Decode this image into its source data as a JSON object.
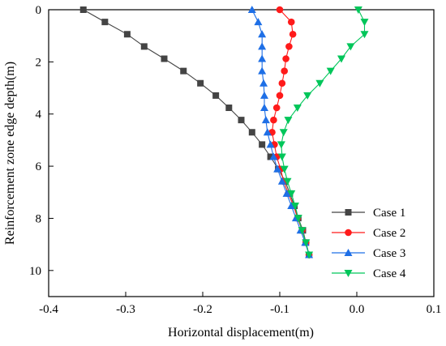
{
  "chart_data": {
    "type": "line",
    "title": "",
    "xlabel": "Horizontal displacement(m)",
    "ylabel": "Reinforcement zone edge depth(m)",
    "xlim": [
      -0.4,
      0.1
    ],
    "ylim": [
      0,
      11
    ],
    "y_inverted": true,
    "x_ticks": [
      "-0.4",
      "-0.3",
      "-0.2",
      "-0.1",
      "0.0",
      "0.1"
    ],
    "y_ticks": [
      "0",
      "2",
      "4",
      "6",
      "8",
      "10"
    ],
    "x_tick_values": [
      -0.4,
      -0.3,
      -0.2,
      -0.1,
      0.0,
      0.1
    ],
    "y_tick_values": [
      0,
      2,
      4,
      6,
      8,
      10
    ],
    "grid": false,
    "legend_position": "bottom-right",
    "series": [
      {
        "name": "Case 1",
        "color": "#444444",
        "marker": "square",
        "points": [
          [
            -0.355,
            0.0
          ],
          [
            -0.327,
            0.47
          ],
          [
            -0.298,
            0.94
          ],
          [
            -0.276,
            1.41
          ],
          [
            -0.25,
            1.88
          ],
          [
            -0.225,
            2.35
          ],
          [
            -0.203,
            2.82
          ],
          [
            -0.183,
            3.29
          ],
          [
            -0.166,
            3.76
          ],
          [
            -0.15,
            4.23
          ],
          [
            -0.136,
            4.7
          ],
          [
            -0.123,
            5.17
          ],
          [
            -0.112,
            5.64
          ],
          [
            -0.102,
            6.11
          ],
          [
            -0.093,
            6.58
          ],
          [
            -0.087,
            7.05
          ],
          [
            -0.081,
            7.52
          ],
          [
            -0.076,
            7.99
          ],
          [
            -0.07,
            8.46
          ],
          [
            -0.066,
            8.93
          ],
          [
            -0.062,
            9.4
          ]
        ]
      },
      {
        "name": "Case 2",
        "color": "#ff1a1a",
        "marker": "circle",
        "points": [
          [
            -0.1,
            0.0
          ],
          [
            -0.085,
            0.47
          ],
          [
            -0.083,
            0.94
          ],
          [
            -0.088,
            1.41
          ],
          [
            -0.092,
            1.88
          ],
          [
            -0.094,
            2.35
          ],
          [
            -0.097,
            2.82
          ],
          [
            -0.1,
            3.29
          ],
          [
            -0.104,
            3.76
          ],
          [
            -0.108,
            4.23
          ],
          [
            -0.11,
            4.7
          ],
          [
            -0.107,
            5.17
          ],
          [
            -0.104,
            5.64
          ],
          [
            -0.099,
            6.11
          ],
          [
            -0.095,
            6.58
          ],
          [
            -0.089,
            7.05
          ],
          [
            -0.082,
            7.52
          ],
          [
            -0.077,
            7.99
          ],
          [
            -0.071,
            8.46
          ],
          [
            -0.066,
            8.93
          ],
          [
            -0.062,
            9.4
          ]
        ]
      },
      {
        "name": "Case 3",
        "color": "#1e6fe6",
        "marker": "triangle-up",
        "points": [
          [
            -0.136,
            0.0
          ],
          [
            -0.128,
            0.47
          ],
          [
            -0.123,
            0.94
          ],
          [
            -0.123,
            1.41
          ],
          [
            -0.123,
            1.88
          ],
          [
            -0.123,
            2.35
          ],
          [
            -0.121,
            2.82
          ],
          [
            -0.12,
            3.29
          ],
          [
            -0.12,
            3.76
          ],
          [
            -0.118,
            4.23
          ],
          [
            -0.116,
            4.7
          ],
          [
            -0.112,
            5.17
          ],
          [
            -0.108,
            5.64
          ],
          [
            -0.103,
            6.11
          ],
          [
            -0.097,
            6.58
          ],
          [
            -0.091,
            7.05
          ],
          [
            -0.085,
            7.52
          ],
          [
            -0.079,
            7.99
          ],
          [
            -0.073,
            8.46
          ],
          [
            -0.067,
            8.93
          ],
          [
            -0.062,
            9.4
          ]
        ]
      },
      {
        "name": "Case 4",
        "color": "#00c65a",
        "marker": "triangle-down",
        "points": [
          [
            0.002,
            0.0
          ],
          [
            0.01,
            0.47
          ],
          [
            0.01,
            0.94
          ],
          [
            -0.008,
            1.41
          ],
          [
            -0.02,
            1.88
          ],
          [
            -0.034,
            2.35
          ],
          [
            -0.048,
            2.82
          ],
          [
            -0.064,
            3.29
          ],
          [
            -0.077,
            3.76
          ],
          [
            -0.089,
            4.23
          ],
          [
            -0.095,
            4.7
          ],
          [
            -0.098,
            5.17
          ],
          [
            -0.097,
            5.64
          ],
          [
            -0.094,
            6.11
          ],
          [
            -0.09,
            6.58
          ],
          [
            -0.085,
            7.05
          ],
          [
            -0.08,
            7.52
          ],
          [
            -0.076,
            7.99
          ],
          [
            -0.071,
            8.46
          ],
          [
            -0.066,
            8.93
          ],
          [
            -0.062,
            9.4
          ]
        ]
      }
    ]
  }
}
